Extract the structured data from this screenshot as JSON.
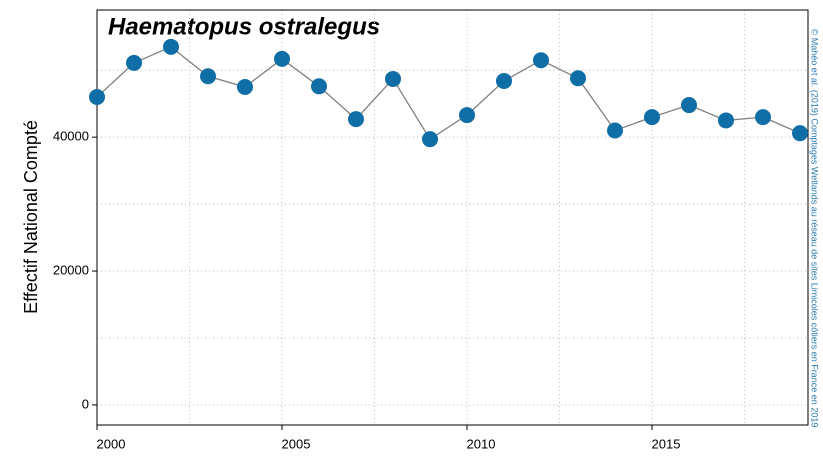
{
  "chart_data": {
    "type": "line",
    "title": "Haematopus ostralegus",
    "y_label": "Effectif National Compté",
    "credit": "© Mahéo et al. (2019) Comptages Wetlands au réseau de sites Limicoles côtiers en France en 2019",
    "x": [
      2000,
      2001,
      2002,
      2003,
      2004,
      2005,
      2006,
      2007,
      2008,
      2009,
      2010,
      2011,
      2012,
      2013,
      2014,
      2015,
      2016,
      2017,
      2018,
      2019
    ],
    "series": [
      {
        "name": "Haematopus ostralegus",
        "color": "#0f6ea6",
        "line_color": "#808080",
        "values": [
          46000,
          51100,
          53500,
          49100,
          47500,
          51700,
          47600,
          42700,
          48700,
          39700,
          43300,
          48400,
          51500,
          48800,
          41000,
          43000,
          44800,
          42500,
          43000,
          40600
        ]
      }
    ],
    "xlim": [
      2000,
      2019
    ],
    "xticks": [
      2000,
      2005,
      2010,
      2015
    ],
    "ylim": [
      -3000,
      59000
    ],
    "yticks": [
      0,
      20000,
      40000
    ],
    "xgrid": [
      2000,
      2002.5,
      2005,
      2007.5,
      2010,
      2012.5,
      2015,
      2017.5
    ],
    "ygrid": [
      0,
      10000,
      20000,
      30000,
      40000,
      50000
    ],
    "grid": true
  }
}
